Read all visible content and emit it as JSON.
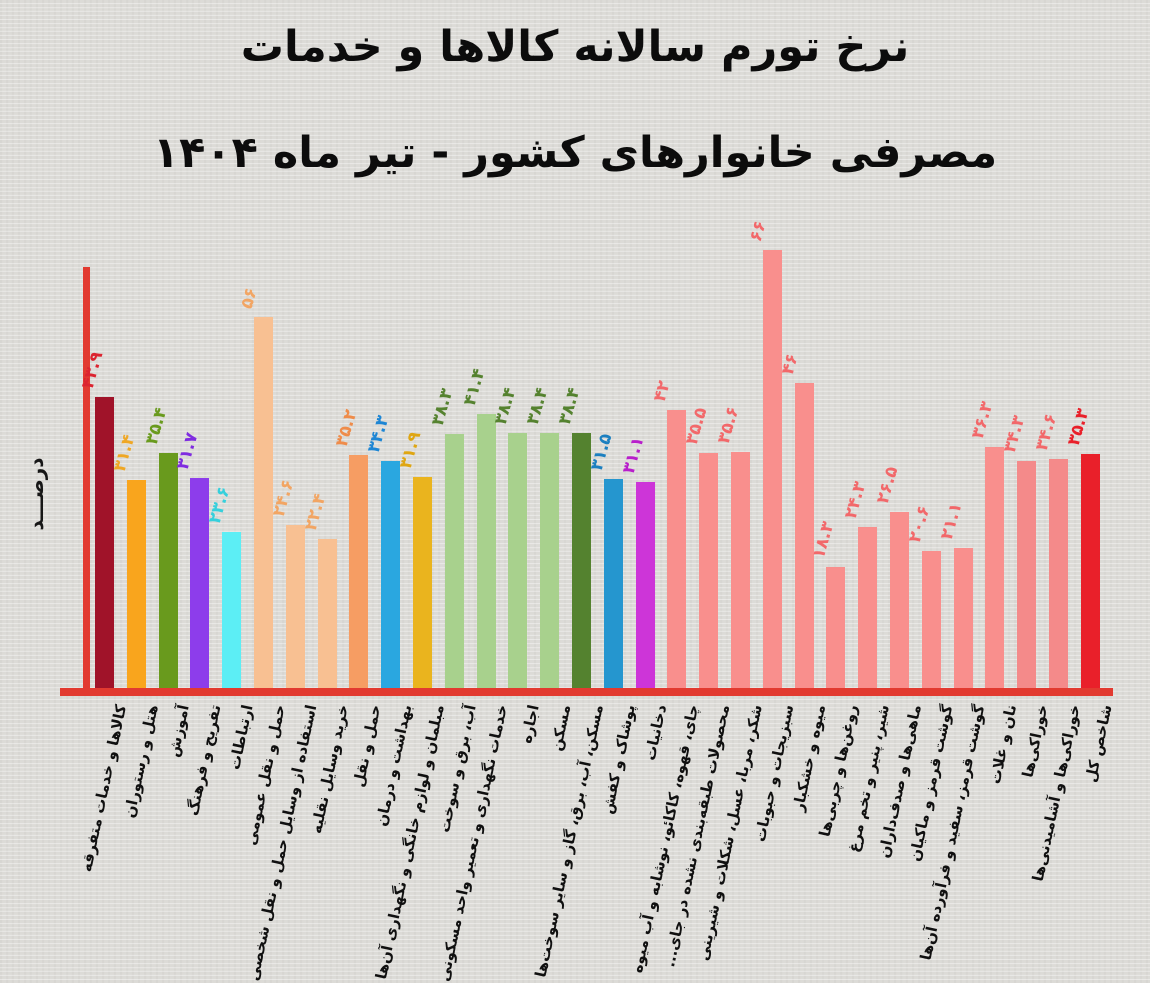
{
  "title": {
    "line1": "نرخ تورم سالانه کالاها و خدمات",
    "line2": "مصرفی خانوارهای کشور - تیر ماه ۱۴۰۴"
  },
  "y_axis_label": "درصـــد",
  "chart_data": {
    "type": "bar",
    "title": "نرخ تورم سالانه کالاها و خدمات مصرفی خانوارهای کشور - تیر ماه ۱۴۰۴",
    "xlabel": "",
    "ylabel": "درصد",
    "ylim": [
      0,
      70
    ],
    "grid": false,
    "legend": "none",
    "axis_color": "#e23a30",
    "background_color": "#dcdbd7",
    "value_labels_rotated": true,
    "category_labels_rotated": true,
    "bars": [
      {
        "label": "کالاها و خدمات متفرقه",
        "value": 43.9,
        "display": "۴۳.۹",
        "bar_color": "#a01329",
        "value_color": "#dc2430"
      },
      {
        "label": "هتل و رستوران",
        "value": 31.4,
        "display": "۳۱.۴",
        "bar_color": "#f9a51d",
        "value_color": "#efa724"
      },
      {
        "label": "آموزش",
        "value": 35.4,
        "display": "۳۵.۴",
        "bar_color": "#699a1d",
        "value_color": "#699a1d"
      },
      {
        "label": "تفریح و فرهنگ",
        "value": 31.7,
        "display": "۳۱.۷",
        "bar_color": "#8d3deb",
        "value_color": "#7f2ce0"
      },
      {
        "label": "ارتباطات",
        "value": 23.6,
        "display": "۲۳.۶",
        "bar_color": "#5ceef5",
        "value_color": "#35d0dc"
      },
      {
        "label": "حمل و نقل عمومی",
        "value": 56,
        "display": "۵۶",
        "bar_color": "#f8c092",
        "value_color": "#f2a563"
      },
      {
        "label": "استفاده از وسایل حمل و نقل شخصی",
        "value": 24.6,
        "display": "۲۴.۶",
        "bar_color": "#f8c092",
        "value_color": "#f2a563"
      },
      {
        "label": "خرید وسایل نقلیه",
        "value": 22.4,
        "display": "۲۲.۴",
        "bar_color": "#f8c092",
        "value_color": "#f2a563"
      },
      {
        "label": "حمل و نقل",
        "value": 35.2,
        "display": "۳۵.۲",
        "bar_color": "#f69d63",
        "value_color": "#ef8c4a"
      },
      {
        "label": "بهداشت و درمان",
        "value": 34.3,
        "display": "۳۴.۳",
        "bar_color": "#2aa7e0",
        "value_color": "#1e86d4"
      },
      {
        "label": "مبلمان و لوازم خانگی و نگهداری آن‌ها",
        "value": 31.9,
        "display": "۳۱.۹",
        "bar_color": "#eab41e",
        "value_color": "#dfa612"
      },
      {
        "label": "آب، برق و سوخت",
        "value": 38.3,
        "display": "۳۸.۳",
        "bar_color": "#a8d18d",
        "value_color": "#55822f"
      },
      {
        "label": "خدمات نگهداری و تعمیر واحد مسکونی",
        "value": 41.4,
        "display": "۴۱.۴",
        "bar_color": "#a8d18d",
        "value_color": "#55822f"
      },
      {
        "label": "اجاره",
        "value": 38.4,
        "display": "۳۸.۴",
        "bar_color": "#a8d18d",
        "value_color": "#55822f"
      },
      {
        "label": "مسکن",
        "value": 38.4,
        "display": "۳۸.۴",
        "bar_color": "#a8d18d",
        "value_color": "#55822f"
      },
      {
        "label": "مسکن، آب، برق، گاز و سایر سوخت‌ها",
        "value": 38.4,
        "display": "۳۸.۴",
        "bar_color": "#54822f",
        "value_color": "#54822f"
      },
      {
        "label": "پوشاک و کفش",
        "value": 31.5,
        "display": "۳۱.۵",
        "bar_color": "#2596cf",
        "value_color": "#1b7fc0"
      },
      {
        "label": "دخانیات",
        "value": 31.1,
        "display": "۳۱.۱",
        "bar_color": "#cd35d8",
        "value_color": "#b81ecb"
      },
      {
        "label": "چای، قهوه، کاکائو، نوشابه و آب میوه",
        "value": 42,
        "display": "۴۲",
        "bar_color": "#f98f8d",
        "value_color": "#f2686a"
      },
      {
        "label": "محصولات طبقه‌بندی نشده در جای...",
        "value": 35.5,
        "display": "۳۵.۵",
        "bar_color": "#f98f8d",
        "value_color": "#f2686a"
      },
      {
        "label": "شکر، مربا، عسل، شکلات و شیرینی",
        "value": 35.6,
        "display": "۳۵.۶",
        "bar_color": "#f98f8d",
        "value_color": "#f2686a"
      },
      {
        "label": "سبزیجات و حبوبات",
        "value": 66,
        "display": "۶۶",
        "bar_color": "#f98f8d",
        "value_color": "#f2686a"
      },
      {
        "label": "میوه و خشکبار",
        "value": 46,
        "display": "۴۶",
        "bar_color": "#f98f8d",
        "value_color": "#f2686a"
      },
      {
        "label": "روغن‌ها و چربی‌ها",
        "value": 18.3,
        "display": "۱۸.۳",
        "bar_color": "#f98f8d",
        "value_color": "#f2686a"
      },
      {
        "label": "شیر، پنیر و تخم مرغ",
        "value": 24.3,
        "display": "۲۴.۳",
        "bar_color": "#f98f8d",
        "value_color": "#f2686a"
      },
      {
        "label": "ماهی‌ها و صدف‌داران",
        "value": 26.5,
        "display": "۲۶.۵",
        "bar_color": "#f98f8d",
        "value_color": "#f2686a"
      },
      {
        "label": "گوشت قرمز و ماکیان",
        "value": 20.6,
        "display": "۲۰.۶",
        "bar_color": "#f98f8d",
        "value_color": "#f2686a"
      },
      {
        "label": "گوشت قرمز، سفید و فرآورده آن‌ها",
        "value": 21.1,
        "display": "۲۱.۱",
        "bar_color": "#f98f8d",
        "value_color": "#f2686a"
      },
      {
        "label": "نان و غلات",
        "value": 36.3,
        "display": "۳۶.۳",
        "bar_color": "#f98f8d",
        "value_color": "#f2686a"
      },
      {
        "label": "خوراکی‌ها",
        "value": 34.3,
        "display": "۳۴.۳",
        "bar_color": "#f48a8a",
        "value_color": "#f2686a"
      },
      {
        "label": "خوراکی‌ها و آشامیدنی‌ها",
        "value": 34.6,
        "display": "۳۴.۶",
        "bar_color": "#f48a8a",
        "value_color": "#f2686a"
      },
      {
        "label": "شاخص کل",
        "value": 35.3,
        "display": "۳۵.۳",
        "bar_color": "#e9202a",
        "value_color": "#e9202a"
      }
    ]
  }
}
